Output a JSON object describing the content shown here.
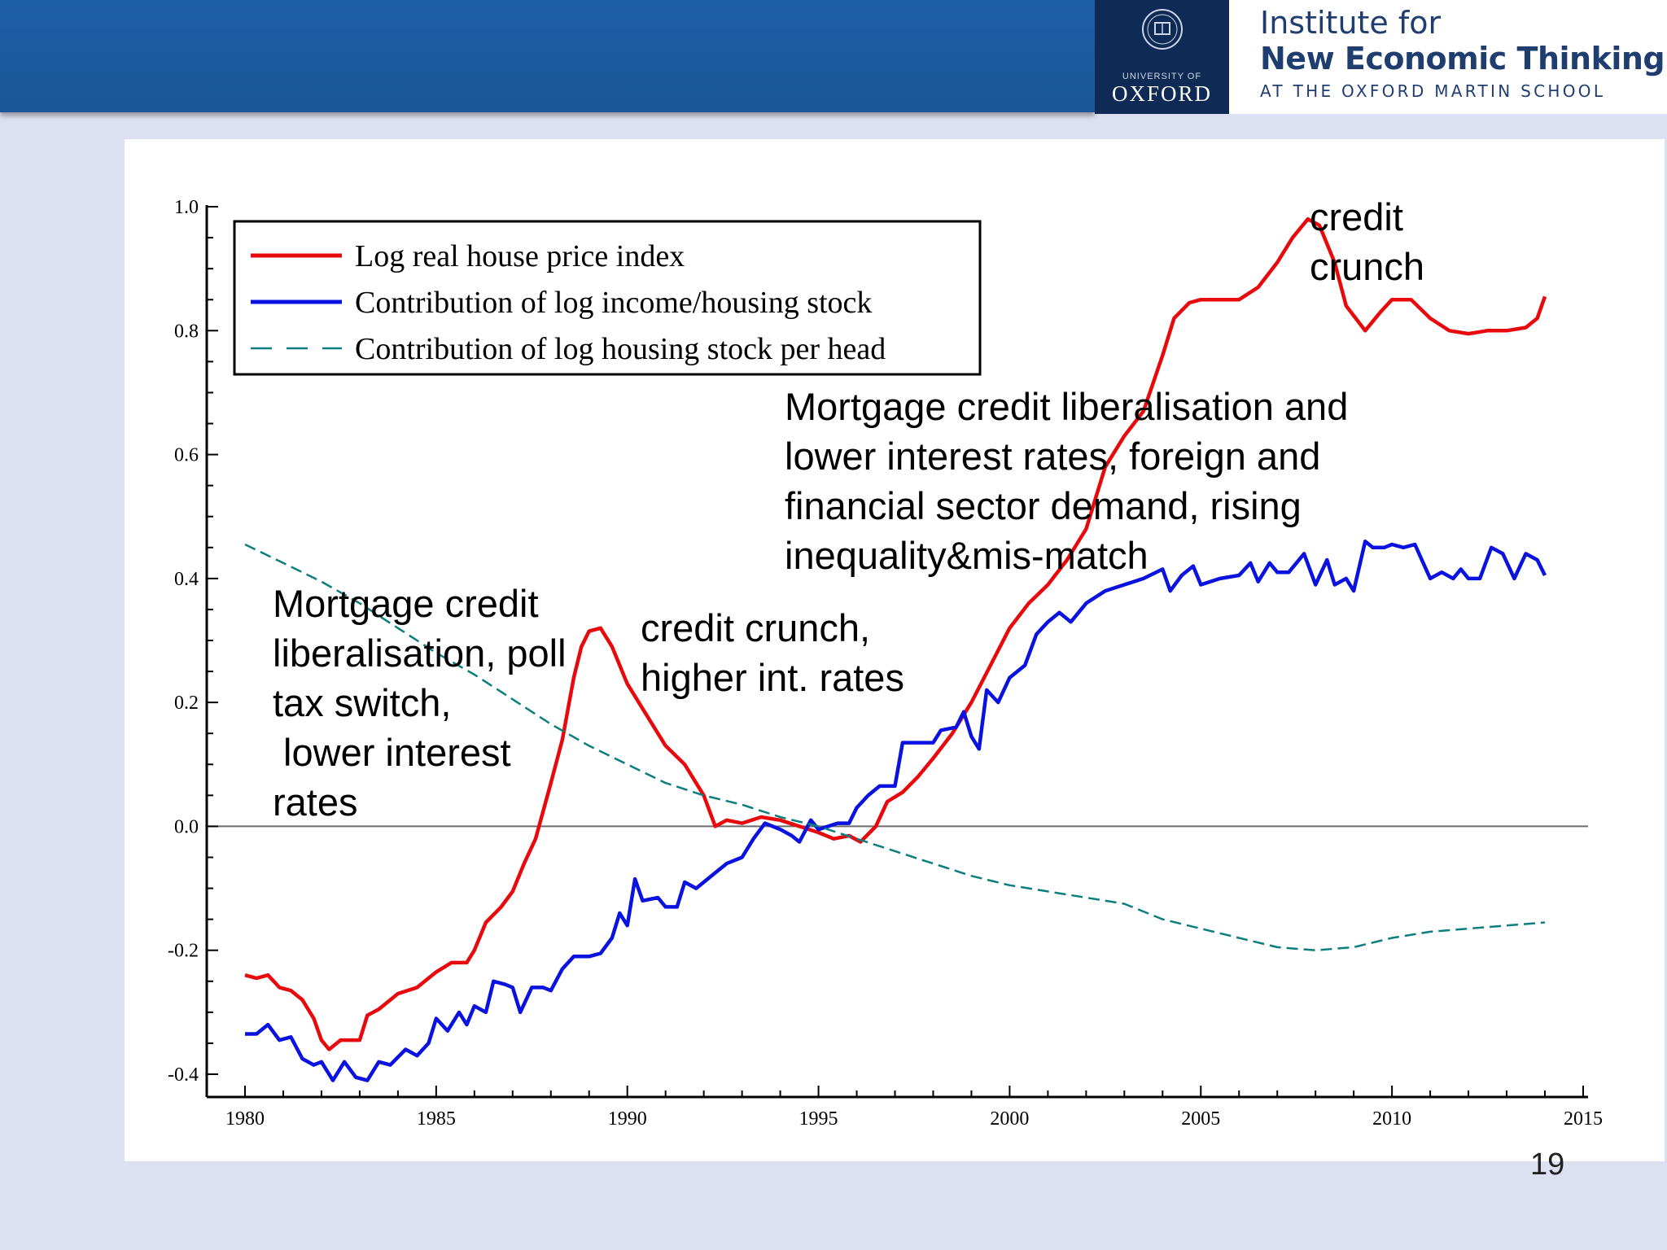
{
  "header": {
    "logo_university_small": "UNIVERSITY OF",
    "logo_university": "OXFORD",
    "logo_institute_line1": "Institute for",
    "logo_institute_line2": "New Economic Thinking",
    "logo_institute_line3": "AT THE OXFORD MARTIN SCHOOL",
    "colors": {
      "bar": "#1a5699",
      "oxford_box": "#0f2a54",
      "institute_text": "#1f3e6f"
    }
  },
  "annotations": {
    "credit_crunch_2008": "credit\ncrunch",
    "boom_2000s": "Mortgage credit liberalisation and\nlower interest rates, foreign and\nfinancial sector demand, rising\ninequality&mis-match",
    "credit_crunch_1990": "credit crunch,\nhigher int. rates",
    "boom_1980s": "Mortgage credit\nliberalisation, poll\ntax switch,\n lower interest\nrates"
  },
  "page_number": "19",
  "chart_data": {
    "type": "line",
    "title": "",
    "xlabel": "",
    "ylabel": "",
    "xlim": [
      1980,
      2015
    ],
    "ylim": [
      -0.4,
      1.0
    ],
    "x_ticks": [
      1980,
      1985,
      1990,
      1995,
      2000,
      2005,
      2010,
      2015
    ],
    "y_ticks": [
      -0.4,
      -0.2,
      0.0,
      0.2,
      0.4,
      0.6,
      0.8,
      1.0
    ],
    "x_tick_labels": [
      "1980",
      "1985",
      "1990",
      "1995",
      "2000",
      "2005",
      "2010",
      "2015"
    ],
    "y_tick_labels": [
      "-0.4",
      "-0.2",
      "0.0",
      "0.2",
      "0.4",
      "0.6",
      "0.8",
      "1.0"
    ],
    "zero_line": true,
    "grid": false,
    "legend_position": "top-left",
    "series": [
      {
        "name": "Log real house price index",
        "color": "#e8090c",
        "style": "solid",
        "points": [
          [
            1980.0,
            -0.24
          ],
          [
            1980.3,
            -0.245
          ],
          [
            1980.6,
            -0.24
          ],
          [
            1980.9,
            -0.26
          ],
          [
            1981.2,
            -0.265
          ],
          [
            1981.5,
            -0.28
          ],
          [
            1981.8,
            -0.31
          ],
          [
            1982.0,
            -0.345
          ],
          [
            1982.2,
            -0.36
          ],
          [
            1982.5,
            -0.345
          ],
          [
            1983.0,
            -0.345
          ],
          [
            1983.2,
            -0.305
          ],
          [
            1983.5,
            -0.295
          ],
          [
            1984.0,
            -0.27
          ],
          [
            1984.5,
            -0.26
          ],
          [
            1985.0,
            -0.235
          ],
          [
            1985.4,
            -0.22
          ],
          [
            1985.8,
            -0.22
          ],
          [
            1986.0,
            -0.2
          ],
          [
            1986.3,
            -0.155
          ],
          [
            1986.7,
            -0.13
          ],
          [
            1987.0,
            -0.105
          ],
          [
            1987.3,
            -0.06
          ],
          [
            1987.6,
            -0.02
          ],
          [
            1988.0,
            0.07
          ],
          [
            1988.3,
            0.14
          ],
          [
            1988.6,
            0.24
          ],
          [
            1988.8,
            0.29
          ],
          [
            1989.0,
            0.315
          ],
          [
            1989.3,
            0.32
          ],
          [
            1989.6,
            0.29
          ],
          [
            1990.0,
            0.23
          ],
          [
            1990.5,
            0.18
          ],
          [
            1991.0,
            0.13
          ],
          [
            1991.5,
            0.1
          ],
          [
            1992.0,
            0.05
          ],
          [
            1992.3,
            0.0
          ],
          [
            1992.6,
            0.01
          ],
          [
            1993.0,
            0.005
          ],
          [
            1993.5,
            0.015
          ],
          [
            1994.0,
            0.01
          ],
          [
            1994.5,
            0.0
          ],
          [
            1995.0,
            -0.01
          ],
          [
            1995.4,
            -0.02
          ],
          [
            1995.8,
            -0.015
          ],
          [
            1996.1,
            -0.025
          ],
          [
            1996.5,
            0.0
          ],
          [
            1996.8,
            0.04
          ],
          [
            1997.2,
            0.055
          ],
          [
            1997.6,
            0.08
          ],
          [
            1998.0,
            0.11
          ],
          [
            1998.5,
            0.15
          ],
          [
            1999.0,
            0.2
          ],
          [
            1999.5,
            0.26
          ],
          [
            2000.0,
            0.32
          ],
          [
            2000.5,
            0.36
          ],
          [
            2001.0,
            0.39
          ],
          [
            2001.5,
            0.43
          ],
          [
            2002.0,
            0.48
          ],
          [
            2002.5,
            0.58
          ],
          [
            2003.0,
            0.63
          ],
          [
            2003.5,
            0.67
          ],
          [
            2004.0,
            0.76
          ],
          [
            2004.3,
            0.82
          ],
          [
            2004.7,
            0.845
          ],
          [
            2005.0,
            0.85
          ],
          [
            2006.0,
            0.85
          ],
          [
            2006.5,
            0.87
          ],
          [
            2007.0,
            0.91
          ],
          [
            2007.4,
            0.95
          ],
          [
            2007.8,
            0.98
          ],
          [
            2008.1,
            0.97
          ],
          [
            2008.5,
            0.91
          ],
          [
            2008.8,
            0.84
          ],
          [
            2009.3,
            0.8
          ],
          [
            2009.7,
            0.83
          ],
          [
            2010.0,
            0.85
          ],
          [
            2010.5,
            0.85
          ],
          [
            2011.0,
            0.82
          ],
          [
            2011.5,
            0.8
          ],
          [
            2012.0,
            0.795
          ],
          [
            2012.5,
            0.8
          ],
          [
            2013.0,
            0.8
          ],
          [
            2013.5,
            0.805
          ],
          [
            2013.8,
            0.82
          ],
          [
            2014.0,
            0.855
          ]
        ]
      },
      {
        "name": "Contribution of log income/housing stock",
        "color": "#0a12e0",
        "style": "solid",
        "points": [
          [
            1980.0,
            -0.335
          ],
          [
            1980.3,
            -0.335
          ],
          [
            1980.6,
            -0.32
          ],
          [
            1980.9,
            -0.345
          ],
          [
            1981.2,
            -0.34
          ],
          [
            1981.5,
            -0.375
          ],
          [
            1981.8,
            -0.385
          ],
          [
            1982.0,
            -0.38
          ],
          [
            1982.3,
            -0.41
          ],
          [
            1982.6,
            -0.38
          ],
          [
            1982.9,
            -0.405
          ],
          [
            1983.2,
            -0.41
          ],
          [
            1983.5,
            -0.38
          ],
          [
            1983.8,
            -0.385
          ],
          [
            1984.2,
            -0.36
          ],
          [
            1984.5,
            -0.37
          ],
          [
            1984.8,
            -0.35
          ],
          [
            1985.0,
            -0.31
          ],
          [
            1985.3,
            -0.33
          ],
          [
            1985.6,
            -0.3
          ],
          [
            1985.8,
            -0.32
          ],
          [
            1986.0,
            -0.29
          ],
          [
            1986.3,
            -0.3
          ],
          [
            1986.5,
            -0.25
          ],
          [
            1986.8,
            -0.255
          ],
          [
            1987.0,
            -0.26
          ],
          [
            1987.2,
            -0.3
          ],
          [
            1987.5,
            -0.26
          ],
          [
            1987.8,
            -0.26
          ],
          [
            1988.0,
            -0.265
          ],
          [
            1988.3,
            -0.23
          ],
          [
            1988.6,
            -0.21
          ],
          [
            1989.0,
            -0.21
          ],
          [
            1989.3,
            -0.205
          ],
          [
            1989.6,
            -0.18
          ],
          [
            1989.8,
            -0.14
          ],
          [
            1990.0,
            -0.16
          ],
          [
            1990.2,
            -0.085
          ],
          [
            1990.4,
            -0.12
          ],
          [
            1990.8,
            -0.115
          ],
          [
            1991.0,
            -0.13
          ],
          [
            1991.3,
            -0.13
          ],
          [
            1991.5,
            -0.09
          ],
          [
            1991.8,
            -0.1
          ],
          [
            1992.0,
            -0.09
          ],
          [
            1992.3,
            -0.075
          ],
          [
            1992.6,
            -0.06
          ],
          [
            1993.0,
            -0.05
          ],
          [
            1993.3,
            -0.02
          ],
          [
            1993.6,
            0.005
          ],
          [
            1994.0,
            -0.005
          ],
          [
            1994.3,
            -0.015
          ],
          [
            1994.5,
            -0.025
          ],
          [
            1994.8,
            0.01
          ],
          [
            1995.0,
            -0.005
          ],
          [
            1995.5,
            0.005
          ],
          [
            1995.8,
            0.005
          ],
          [
            1996.0,
            0.03
          ],
          [
            1996.3,
            0.05
          ],
          [
            1996.6,
            0.065
          ],
          [
            1997.0,
            0.065
          ],
          [
            1997.2,
            0.135
          ],
          [
            1997.5,
            0.135
          ],
          [
            1998.0,
            0.135
          ],
          [
            1998.2,
            0.155
          ],
          [
            1998.6,
            0.16
          ],
          [
            1998.8,
            0.185
          ],
          [
            1999.0,
            0.145
          ],
          [
            1999.2,
            0.125
          ],
          [
            1999.4,
            0.22
          ],
          [
            1999.7,
            0.2
          ],
          [
            2000.0,
            0.24
          ],
          [
            2000.4,
            0.26
          ],
          [
            2000.7,
            0.31
          ],
          [
            2001.0,
            0.33
          ],
          [
            2001.3,
            0.345
          ],
          [
            2001.6,
            0.33
          ],
          [
            2002.0,
            0.36
          ],
          [
            2002.5,
            0.38
          ],
          [
            2003.0,
            0.39
          ],
          [
            2003.5,
            0.4
          ],
          [
            2004.0,
            0.415
          ],
          [
            2004.2,
            0.38
          ],
          [
            2004.5,
            0.405
          ],
          [
            2004.8,
            0.42
          ],
          [
            2005.0,
            0.39
          ],
          [
            2005.5,
            0.4
          ],
          [
            2006.0,
            0.405
          ],
          [
            2006.3,
            0.425
          ],
          [
            2006.5,
            0.395
          ],
          [
            2006.8,
            0.425
          ],
          [
            2007.0,
            0.41
          ],
          [
            2007.3,
            0.41
          ],
          [
            2007.7,
            0.44
          ],
          [
            2008.0,
            0.39
          ],
          [
            2008.3,
            0.43
          ],
          [
            2008.5,
            0.39
          ],
          [
            2008.8,
            0.4
          ],
          [
            2009.0,
            0.38
          ],
          [
            2009.3,
            0.46
          ],
          [
            2009.5,
            0.45
          ],
          [
            2009.8,
            0.45
          ],
          [
            2010.0,
            0.455
          ],
          [
            2010.3,
            0.45
          ],
          [
            2010.6,
            0.455
          ],
          [
            2011.0,
            0.4
          ],
          [
            2011.3,
            0.41
          ],
          [
            2011.6,
            0.4
          ],
          [
            2011.8,
            0.415
          ],
          [
            2012.0,
            0.4
          ],
          [
            2012.3,
            0.4
          ],
          [
            2012.6,
            0.45
          ],
          [
            2012.9,
            0.44
          ],
          [
            2013.2,
            0.4
          ],
          [
            2013.5,
            0.44
          ],
          [
            2013.8,
            0.43
          ],
          [
            2014.0,
            0.405
          ]
        ]
      },
      {
        "name": "Contribution of log housing stock per head",
        "color": "#0b7e7e",
        "style": "dashed",
        "points": [
          [
            1980.0,
            0.455
          ],
          [
            1981.0,
            0.425
          ],
          [
            1982.0,
            0.395
          ],
          [
            1983.0,
            0.36
          ],
          [
            1984.0,
            0.32
          ],
          [
            1985.0,
            0.28
          ],
          [
            1986.0,
            0.245
          ],
          [
            1987.0,
            0.205
          ],
          [
            1988.0,
            0.165
          ],
          [
            1989.0,
            0.13
          ],
          [
            1990.0,
            0.1
          ],
          [
            1991.0,
            0.07
          ],
          [
            1992.0,
            0.05
          ],
          [
            1993.0,
            0.035
          ],
          [
            1994.0,
            0.015
          ],
          [
            1995.0,
            0.0
          ],
          [
            1996.0,
            -0.02
          ],
          [
            1997.0,
            -0.04
          ],
          [
            1998.0,
            -0.06
          ],
          [
            1999.0,
            -0.08
          ],
          [
            2000.0,
            -0.095
          ],
          [
            2001.0,
            -0.105
          ],
          [
            2002.0,
            -0.115
          ],
          [
            2003.0,
            -0.125
          ],
          [
            2004.0,
            -0.15
          ],
          [
            2005.0,
            -0.165
          ],
          [
            2006.0,
            -0.18
          ],
          [
            2007.0,
            -0.195
          ],
          [
            2008.0,
            -0.2
          ],
          [
            2009.0,
            -0.195
          ],
          [
            2010.0,
            -0.18
          ],
          [
            2011.0,
            -0.17
          ],
          [
            2012.0,
            -0.165
          ],
          [
            2013.0,
            -0.16
          ],
          [
            2014.0,
            -0.155
          ]
        ]
      }
    ]
  }
}
